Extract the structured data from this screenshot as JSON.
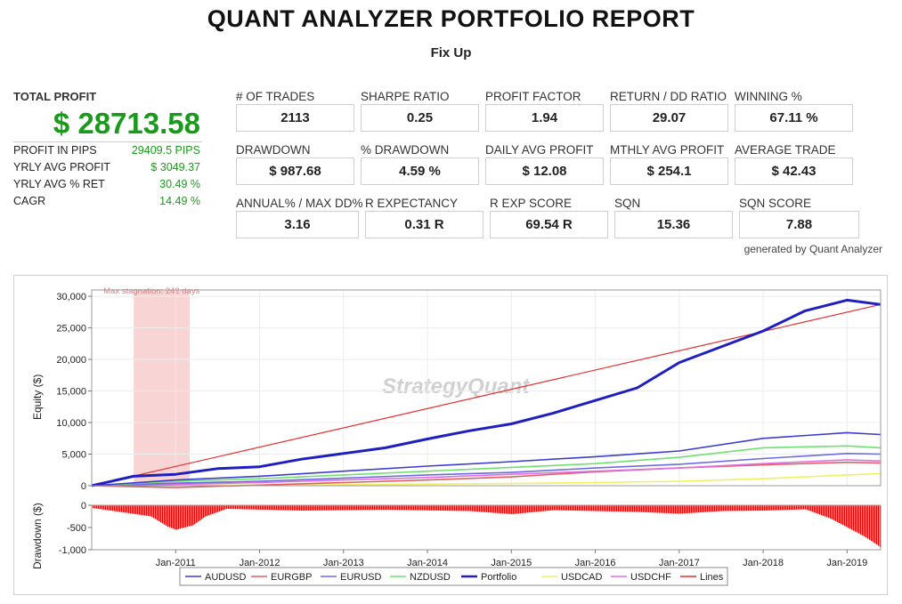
{
  "report": {
    "title": "QUANT ANALYZER PORTFOLIO REPORT",
    "subtitle": "Fix Up"
  },
  "summary": {
    "total_profit_label": "TOTAL PROFIT",
    "total_profit_value": "$ 28713.58",
    "rows": [
      {
        "label": "PROFIT IN PIPS",
        "value": "29409.5 PIPS"
      },
      {
        "label": "YRLY AVG PROFIT",
        "value": "$ 3049.37"
      },
      {
        "label": "YRLY AVG % RET",
        "value": "30.49 %"
      },
      {
        "label": "CAGR",
        "value": "14.49 %"
      }
    ]
  },
  "metrics": [
    {
      "label": "# OF TRADES",
      "value": "2113"
    },
    {
      "label": "SHARPE RATIO",
      "value": "0.25"
    },
    {
      "label": "PROFIT FACTOR",
      "value": "1.94"
    },
    {
      "label": "RETURN / DD RATIO",
      "value": "29.07"
    },
    {
      "label": "WINNING %",
      "value": "67.11 %"
    },
    {
      "label": "DRAWDOWN",
      "value": "$ 987.68"
    },
    {
      "label": "% DRAWDOWN",
      "value": "4.59 %"
    },
    {
      "label": "DAILY AVG PROFIT",
      "value": "$ 12.08"
    },
    {
      "label": "MTHLY AVG PROFIT",
      "value": "$ 254.1"
    },
    {
      "label": "AVERAGE TRADE",
      "value": "$ 42.43"
    },
    {
      "label": "ANNUAL% / MAX DD%",
      "value": "3.16"
    },
    {
      "label": "R EXPECTANCY",
      "value": "0.31 R"
    },
    {
      "label": "R EXP SCORE",
      "value": "69.54 R"
    },
    {
      "label": "SQN",
      "value": "15.36"
    },
    {
      "label": "SQN SCORE",
      "value": "7.88"
    }
  ],
  "generated_by": "generated by Quant Analyzer",
  "chart": {
    "watermark": "StrategyQuant",
    "stagnation_label": "Max stagnation: 242 days",
    "equity_axis_label": "Equity ($)",
    "drawdown_axis_label": "Drawdown ($)",
    "equity_ticks": [
      "0",
      "5,000",
      "10,000",
      "15,000",
      "20,000",
      "25,000",
      "30,000"
    ],
    "drawdown_ticks": [
      "0",
      "-500",
      "-1,000"
    ],
    "x_ticks": [
      "Jan-2011",
      "Jan-2012",
      "Jan-2013",
      "Jan-2014",
      "Jan-2015",
      "Jan-2016",
      "Jan-2017",
      "Jan-2018",
      "Jan-2019"
    ],
    "legend": [
      {
        "name": "AUDUSD",
        "color": "#3c3cd0"
      },
      {
        "name": "EURGBP",
        "color": "#e06060"
      },
      {
        "name": "EURUSD",
        "color": "#6b6be0"
      },
      {
        "name": "NZDUSD",
        "color": "#70e070"
      },
      {
        "name": "Portfolio",
        "color": "#1f1fbf"
      },
      {
        "name": "USDCAD",
        "color": "#f0f060"
      },
      {
        "name": "USDCHF",
        "color": "#e070e0"
      },
      {
        "name": "Lines",
        "color": "#e03030"
      }
    ],
    "colors": {
      "stagnation": "#f9d4d4",
      "drawdown": "#e00000",
      "trend": "#e03030"
    }
  },
  "chart_data": {
    "type": "line",
    "x_range": [
      "2010-01",
      "2019-05"
    ],
    "ylim": [
      0,
      31000
    ],
    "drawdown_ylim": [
      -1000,
      0
    ],
    "stagnation": {
      "start": "2010-07",
      "end": "2011-03",
      "days": 242
    },
    "series": [
      {
        "name": "Portfolio",
        "values": [
          [
            2010.0,
            0
          ],
          [
            2010.5,
            1500
          ],
          [
            2011.0,
            1800
          ],
          [
            2011.5,
            2700
          ],
          [
            2012.0,
            3000
          ],
          [
            2012.5,
            4200
          ],
          [
            2013.0,
            5100
          ],
          [
            2013.5,
            6000
          ],
          [
            2014.0,
            7400
          ],
          [
            2014.5,
            8700
          ],
          [
            2015.0,
            9800
          ],
          [
            2015.5,
            11500
          ],
          [
            2016.0,
            13500
          ],
          [
            2016.5,
            15500
          ],
          [
            2017.0,
            19500
          ],
          [
            2017.5,
            22000
          ],
          [
            2018.0,
            24500
          ],
          [
            2018.5,
            27700
          ],
          [
            2019.0,
            29400
          ],
          [
            2019.4,
            28700
          ]
        ]
      },
      {
        "name": "AUDUSD",
        "values": [
          [
            2010.0,
            0
          ],
          [
            2011.0,
            900
          ],
          [
            2012.0,
            1500
          ],
          [
            2013.0,
            2300
          ],
          [
            2014.0,
            3100
          ],
          [
            2015.0,
            3800
          ],
          [
            2016.0,
            4600
          ],
          [
            2017.0,
            5500
          ],
          [
            2018.0,
            7500
          ],
          [
            2019.0,
            8400
          ],
          [
            2019.4,
            8100
          ]
        ]
      },
      {
        "name": "NZDUSD",
        "values": [
          [
            2010.0,
            0
          ],
          [
            2011.0,
            700
          ],
          [
            2012.0,
            1100
          ],
          [
            2013.0,
            1700
          ],
          [
            2014.0,
            2300
          ],
          [
            2015.0,
            2900
          ],
          [
            2016.0,
            3500
          ],
          [
            2017.0,
            4500
          ],
          [
            2018.0,
            6000
          ],
          [
            2019.0,
            6300
          ],
          [
            2019.4,
            6000
          ]
        ]
      },
      {
        "name": "EURUSD",
        "values": [
          [
            2010.0,
            0
          ],
          [
            2011.0,
            400
          ],
          [
            2012.0,
            700
          ],
          [
            2013.0,
            1200
          ],
          [
            2014.0,
            1700
          ],
          [
            2015.0,
            2100
          ],
          [
            2016.0,
            2800
          ],
          [
            2017.0,
            3400
          ],
          [
            2018.0,
            4300
          ],
          [
            2019.0,
            5100
          ],
          [
            2019.4,
            5000
          ]
        ]
      },
      {
        "name": "USDCHF",
        "values": [
          [
            2010.0,
            0
          ],
          [
            2011.0,
            200
          ],
          [
            2012.0,
            500
          ],
          [
            2013.0,
            900
          ],
          [
            2014.0,
            1300
          ],
          [
            2015.0,
            1800
          ],
          [
            2016.0,
            2300
          ],
          [
            2017.0,
            2800
          ],
          [
            2018.0,
            3500
          ],
          [
            2019.0,
            4100
          ],
          [
            2019.4,
            3900
          ]
        ]
      },
      {
        "name": "EURGBP",
        "values": [
          [
            2010.0,
            0
          ],
          [
            2011.0,
            -300
          ],
          [
            2012.0,
            100
          ],
          [
            2013.0,
            500
          ],
          [
            2014.0,
            900
          ],
          [
            2015.0,
            1400
          ],
          [
            2016.0,
            2200
          ],
          [
            2017.0,
            2800
          ],
          [
            2018.0,
            3300
          ],
          [
            2019.0,
            3700
          ],
          [
            2019.4,
            3600
          ]
        ]
      },
      {
        "name": "USDCAD",
        "values": [
          [
            2010.0,
            0
          ],
          [
            2011.0,
            50
          ],
          [
            2012.0,
            100
          ],
          [
            2013.0,
            150
          ],
          [
            2014.0,
            250
          ],
          [
            2015.0,
            350
          ],
          [
            2016.0,
            500
          ],
          [
            2017.0,
            700
          ],
          [
            2018.0,
            1100
          ],
          [
            2019.0,
            1700
          ],
          [
            2019.4,
            1900
          ]
        ]
      },
      {
        "name": "Lines",
        "values": [
          [
            2010.0,
            0
          ],
          [
            2019.4,
            28700
          ]
        ]
      }
    ],
    "drawdown": [
      [
        2010.0,
        -60
      ],
      [
        2010.7,
        -250
      ],
      [
        2010.9,
        -480
      ],
      [
        2011.0,
        -550
      ],
      [
        2011.2,
        -450
      ],
      [
        2011.35,
        -250
      ],
      [
        2011.6,
        -80
      ],
      [
        2012.5,
        -120
      ],
      [
        2013.5,
        -100
      ],
      [
        2014.5,
        -130
      ],
      [
        2015.0,
        -200
      ],
      [
        2015.5,
        -110
      ],
      [
        2016.5,
        -150
      ],
      [
        2017.0,
        -190
      ],
      [
        2017.5,
        -130
      ],
      [
        2018.0,
        -120
      ],
      [
        2018.5,
        -90
      ],
      [
        2018.8,
        -300
      ],
      [
        2019.0,
        -500
      ],
      [
        2019.2,
        -700
      ],
      [
        2019.4,
        -950
      ]
    ]
  }
}
